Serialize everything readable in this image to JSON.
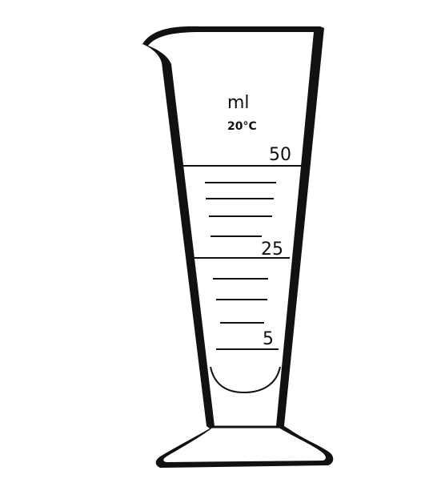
{
  "vessel": {
    "unit_label": "ml",
    "temperature_label": "20°C",
    "scale_labels": {
      "top": "50",
      "middle": "25",
      "bottom": "5"
    }
  },
  "colors": {
    "ink": "#111111",
    "paper": "#ffffff"
  }
}
